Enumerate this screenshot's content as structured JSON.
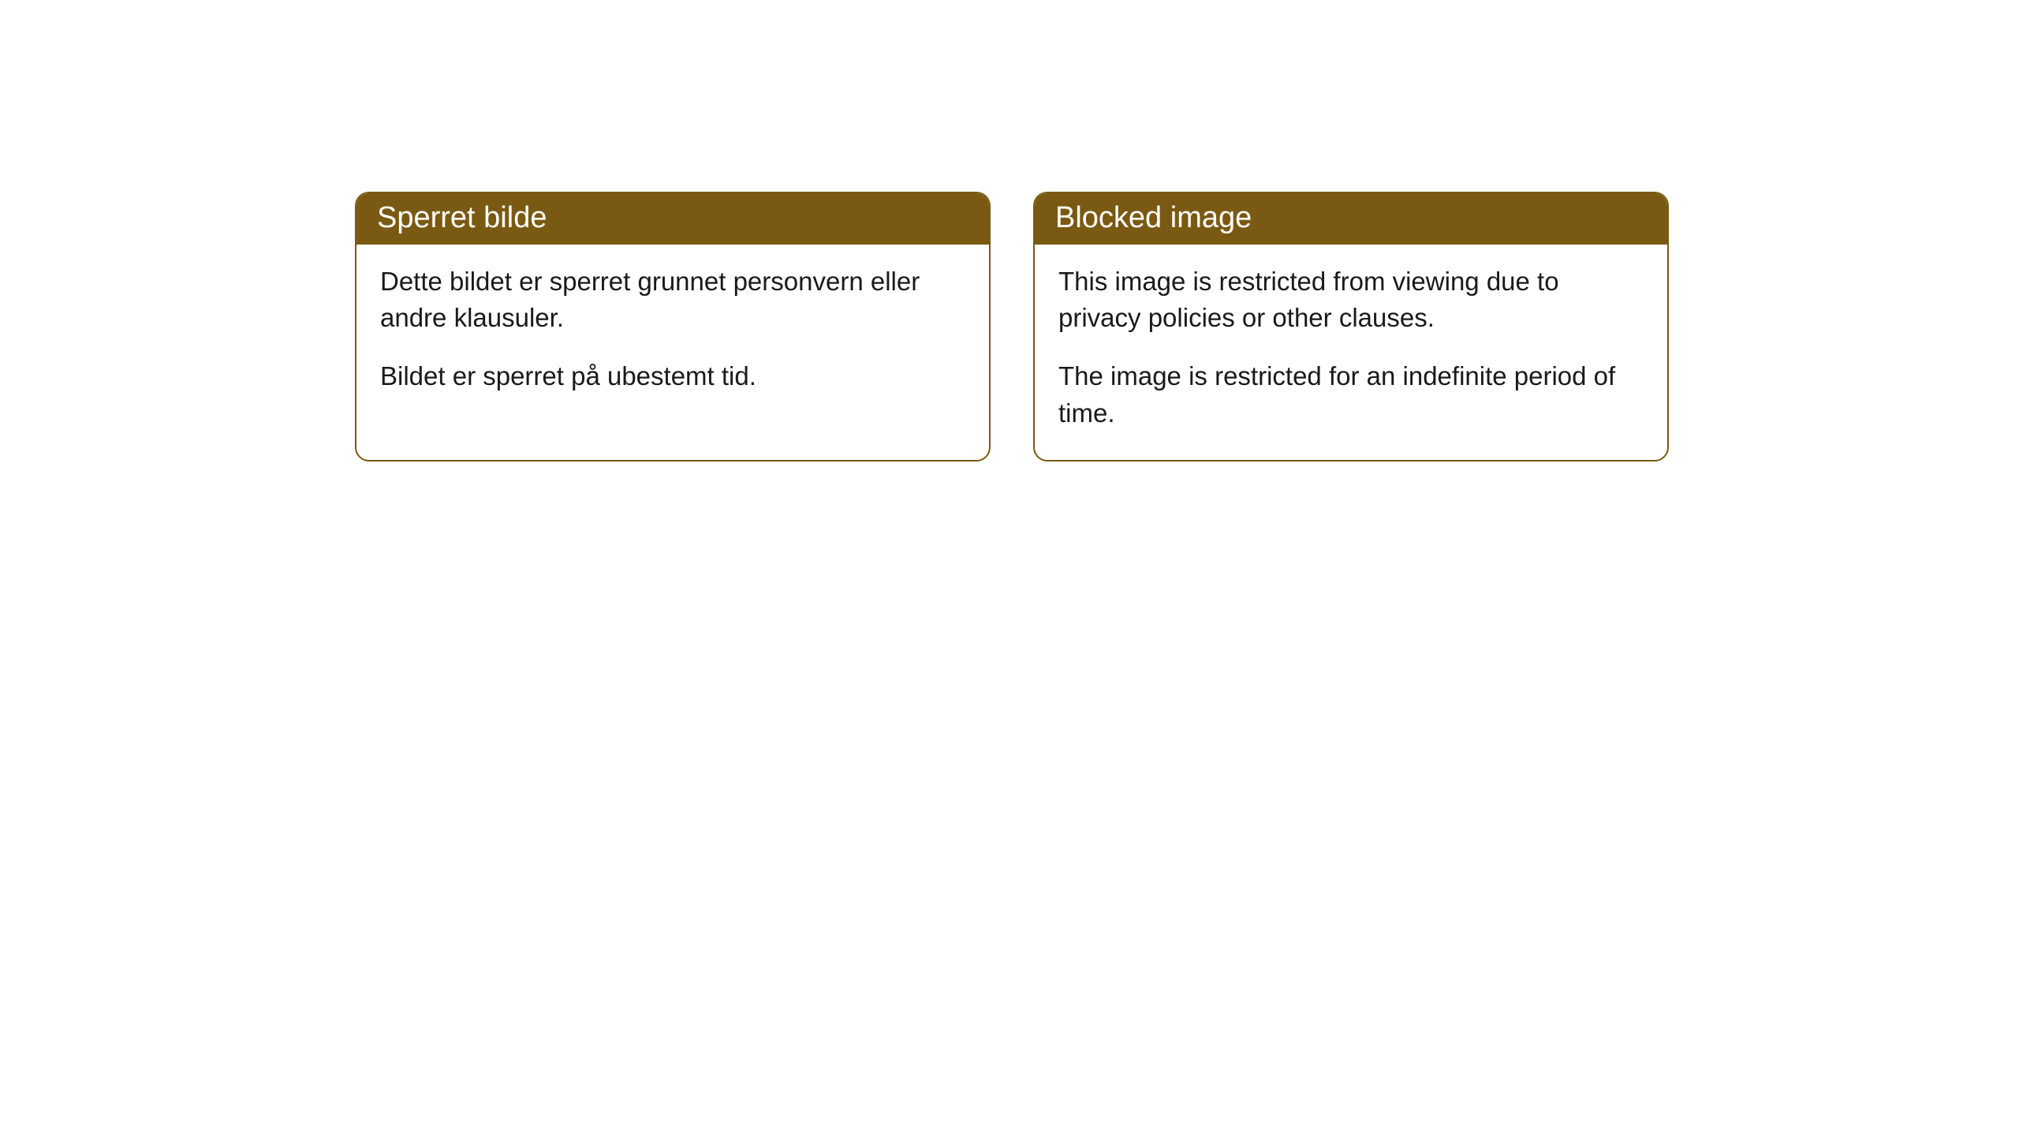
{
  "cards": [
    {
      "title": "Sperret bilde",
      "paragraph1": "Dette bildet er sperret grunnet personvern eller andre klausuler.",
      "paragraph2": "Bildet er sperret på ubestemt tid."
    },
    {
      "title": "Blocked image",
      "paragraph1": "This image is restricted from viewing due to privacy policies or other clauses.",
      "paragraph2": "The image is restricted for an indefinite period of time."
    }
  ],
  "style": {
    "header_bg": "#7a5a12",
    "header_text_color": "#ffffff",
    "border_color": "#7a5a12",
    "body_bg": "#ffffff",
    "body_text_color": "#1a1a1a",
    "border_radius": 18,
    "header_fontsize": 38,
    "body_fontsize": 33
  }
}
